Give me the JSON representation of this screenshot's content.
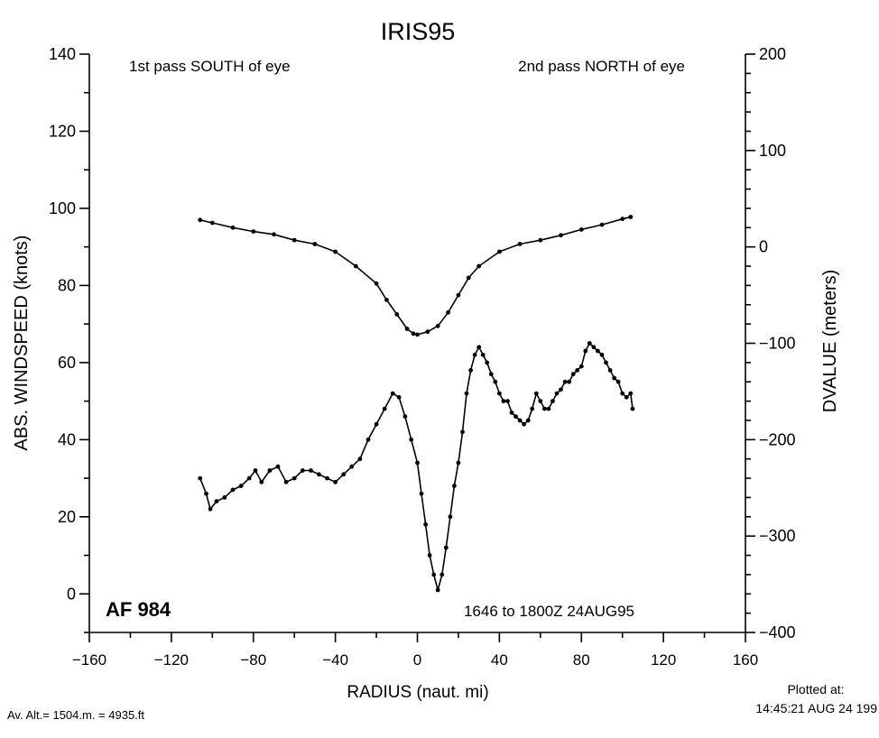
{
  "chart_data": {
    "type": "line",
    "title": "IRIS95",
    "xlabel": "RADIUS (naut. mi)",
    "ylabel_left": "ABS. WINDSPEED (knots)",
    "ylabel_right": "DVALUE (meters)",
    "xlim": [
      -160,
      160
    ],
    "ylim_left": [
      -10,
      140
    ],
    "ylim_right": [
      -400,
      200
    ],
    "x_ticks": [
      -160,
      -120,
      -80,
      -40,
      0,
      40,
      80,
      120,
      160
    ],
    "y_left_ticks": [
      0,
      20,
      40,
      60,
      80,
      100,
      120,
      140
    ],
    "y_right_ticks": [
      -400,
      -300,
      -200,
      -100,
      0,
      100,
      200
    ],
    "annotations": {
      "pass1": "1st pass SOUTH of eye",
      "pass2": "2nd pass NORTH of eye",
      "aircraft": "AF 984",
      "time_range": "1646 to 1800Z 24AUG95"
    },
    "series": [
      {
        "axis": "right",
        "points": [
          [
            -106,
            28
          ],
          [
            -100,
            25
          ],
          [
            -90,
            20
          ],
          [
            -80,
            16
          ],
          [
            -70,
            13
          ],
          [
            -60,
            7
          ],
          [
            -50,
            3
          ],
          [
            -40,
            -5
          ],
          [
            -30,
            -20
          ],
          [
            -20,
            -38
          ],
          [
            -15,
            -55
          ],
          [
            -10,
            -70
          ],
          [
            -5,
            -85
          ],
          [
            -2,
            -90
          ],
          [
            0,
            -91
          ],
          [
            5,
            -88
          ],
          [
            10,
            -82
          ],
          [
            15,
            -68
          ],
          [
            20,
            -50
          ],
          [
            25,
            -32
          ],
          [
            30,
            -20
          ],
          [
            40,
            -5
          ],
          [
            50,
            3
          ],
          [
            60,
            7
          ],
          [
            70,
            12
          ],
          [
            80,
            18
          ],
          [
            90,
            23
          ],
          [
            100,
            29
          ],
          [
            104,
            31
          ]
        ]
      },
      {
        "axis": "left",
        "points": [
          [
            -106,
            30
          ],
          [
            -103,
            26
          ],
          [
            -101,
            22
          ],
          [
            -98,
            24
          ],
          [
            -94,
            25
          ],
          [
            -90,
            27
          ],
          [
            -86,
            28
          ],
          [
            -82,
            30
          ],
          [
            -79,
            32
          ],
          [
            -76,
            29
          ],
          [
            -72,
            32
          ],
          [
            -68,
            33
          ],
          [
            -64,
            29
          ],
          [
            -60,
            30
          ],
          [
            -56,
            32
          ],
          [
            -52,
            32
          ],
          [
            -48,
            31
          ],
          [
            -44,
            30
          ],
          [
            -40,
            29
          ],
          [
            -36,
            31
          ],
          [
            -32,
            33
          ],
          [
            -28,
            35
          ],
          [
            -24,
            40
          ],
          [
            -20,
            44
          ],
          [
            -16,
            48
          ],
          [
            -12,
            52
          ],
          [
            -9,
            51
          ],
          [
            -6,
            46
          ],
          [
            -3,
            40
          ],
          [
            0,
            34
          ],
          [
            2,
            26
          ],
          [
            4,
            18
          ],
          [
            6,
            10
          ],
          [
            8,
            5
          ],
          [
            10,
            1
          ],
          [
            12,
            5
          ],
          [
            14,
            12
          ],
          [
            16,
            20
          ],
          [
            18,
            28
          ],
          [
            20,
            34
          ],
          [
            22,
            42
          ],
          [
            24,
            52
          ],
          [
            26,
            58
          ],
          [
            28,
            62
          ],
          [
            30,
            64
          ],
          [
            32,
            62
          ],
          [
            34,
            60
          ],
          [
            36,
            57
          ],
          [
            38,
            55
          ],
          [
            40,
            52
          ],
          [
            42,
            50
          ],
          [
            44,
            50
          ],
          [
            46,
            47
          ],
          [
            48,
            46
          ],
          [
            50,
            45
          ],
          [
            52,
            44
          ],
          [
            54,
            45
          ],
          [
            56,
            48
          ],
          [
            58,
            52
          ],
          [
            60,
            50
          ],
          [
            62,
            48
          ],
          [
            64,
            48
          ],
          [
            66,
            50
          ],
          [
            68,
            52
          ],
          [
            70,
            53
          ],
          [
            72,
            55
          ],
          [
            74,
            55
          ],
          [
            76,
            57
          ],
          [
            78,
            58
          ],
          [
            80,
            59
          ],
          [
            82,
            63
          ],
          [
            84,
            65
          ],
          [
            86,
            64
          ],
          [
            88,
            63
          ],
          [
            90,
            62
          ],
          [
            92,
            60
          ],
          [
            94,
            58
          ],
          [
            96,
            56
          ],
          [
            98,
            55
          ],
          [
            100,
            52
          ],
          [
            102,
            51
          ],
          [
            104,
            52
          ],
          [
            105,
            48
          ]
        ]
      }
    ]
  },
  "footer": {
    "altitude": "Av. Alt.= 1504.m. = 4935.ft",
    "plotted_label": "Plotted at:",
    "plotted_time": "14:45:21 AUG 24 199"
  }
}
